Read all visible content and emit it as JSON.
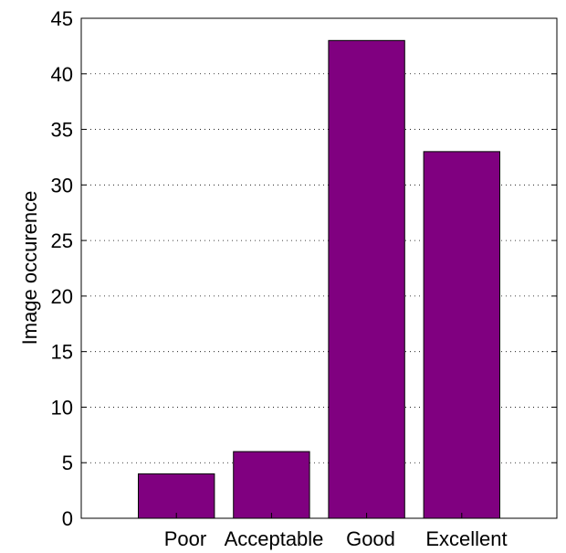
{
  "chart_data": {
    "type": "bar",
    "title": "",
    "xlabel": "",
    "ylabel": "Image occurence",
    "categories": [
      "Poor",
      "Acceptable",
      "Good",
      "Excellent"
    ],
    "values": [
      4,
      6,
      43,
      33
    ],
    "ylim": [
      0,
      45
    ],
    "yticks": [
      "0",
      "5",
      "10",
      "15",
      "20",
      "25",
      "30",
      "35",
      "40",
      "45"
    ],
    "grid": "dotted horizontal",
    "legend": "none",
    "bar_color": "#800080"
  }
}
